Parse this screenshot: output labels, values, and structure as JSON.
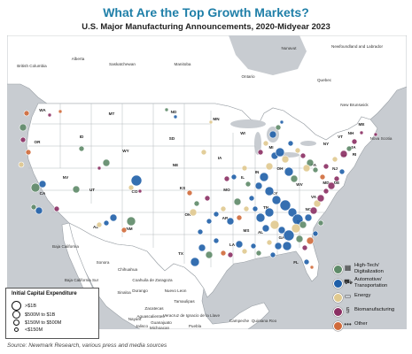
{
  "header": {
    "title": "What Are the Top Growth Markets?",
    "subtitle": "U.S. Major Manufacturing Announcements, 2020-Midyear 2023"
  },
  "map_labels": {
    "regions": [
      "Nunavut",
      "British Columbia",
      "Alberta",
      "Saskatchewan",
      "Manitoba",
      "Ontario",
      "Quebec",
      "Newfoundland and Labrador",
      "New Brunswick",
      "Nova Scotia",
      "Sonora",
      "Chihuahua",
      "Coahuila de Zaragoza",
      "Nuevo Leon",
      "Tamaulipas",
      "Baja California",
      "Baja California Sur",
      "Sinaloa",
      "Durango",
      "Zacatecas",
      "Nayarit",
      "Aguascalientes",
      "Guanajuato",
      "Jalisco",
      "Michoacan",
      "Veracruz de Ignacio de la Llave",
      "Puebla",
      "Campeche",
      "Quintana Roo"
    ],
    "states": [
      "WA",
      "OR",
      "CA",
      "NV",
      "ID",
      "MT",
      "WY",
      "UT",
      "AZ",
      "CO",
      "NM",
      "ND",
      "SD",
      "NE",
      "KS",
      "OK",
      "TX",
      "MN",
      "IA",
      "MO",
      "AR",
      "LA",
      "WI",
      "IL",
      "MS",
      "AL",
      "TN",
      "KY",
      "IN",
      "OH",
      "MI",
      "GA",
      "FL",
      "SC",
      "NC",
      "VA",
      "WV",
      "PA",
      "NY",
      "VT",
      "NH",
      "ME",
      "MA",
      "RI",
      "CT",
      "NJ",
      "DE",
      "MD"
    ]
  },
  "legend_size": {
    "title": "Initial Capital Expenditure",
    "items": [
      ">$1B",
      "$500M to $1B",
      "$150M to $500M",
      "<$150M"
    ]
  },
  "legend_categories": {
    "items": [
      {
        "label": "High-Tech/ Digitalization",
        "color": "#5e8a68",
        "icon": "chip-icon"
      },
      {
        "label": "Automotive/ Transportation",
        "color": "#1f5fa8",
        "icon": "car-icon"
      },
      {
        "label": "Energy",
        "color": "#e0c98f",
        "icon": "battery-icon"
      },
      {
        "label": "Biomanufacturing",
        "color": "#8b2f63",
        "icon": "dna-icon"
      },
      {
        "label": "Other",
        "color": "#d06a3a",
        "icon": "dots-icon"
      }
    ]
  },
  "colors": {
    "land": "#ffffff",
    "water": "#c8ccd1",
    "border": "#9aa0a6"
  },
  "source": "Source: Newmark Research, various press and media sources"
}
